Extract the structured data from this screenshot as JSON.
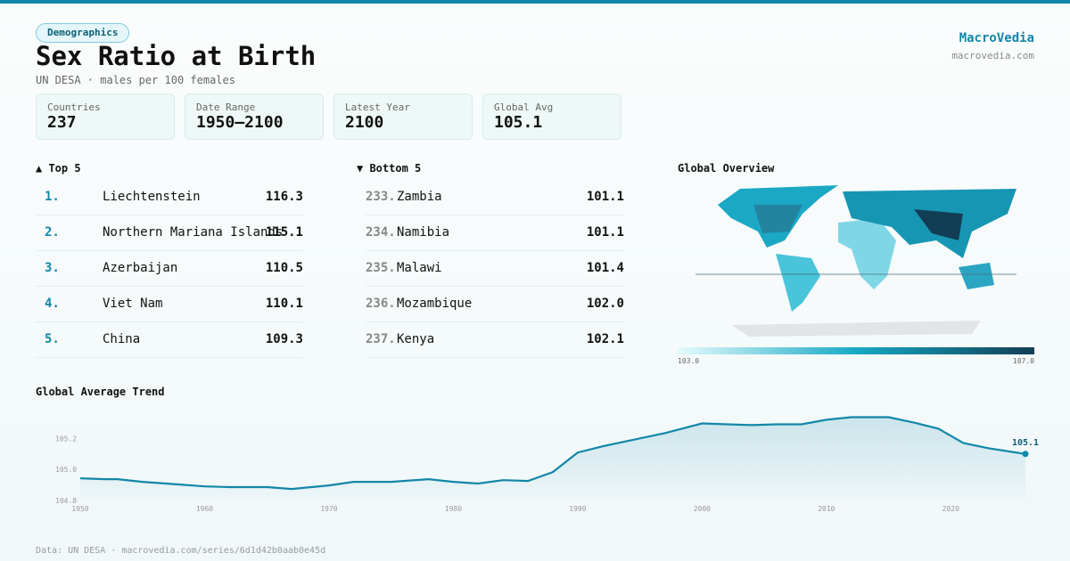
{
  "header": {
    "tag": "Demographics",
    "title": "Sex Ratio at Birth",
    "subtitle": "UN DESA · males per 100 females",
    "brand": "MacroVedia",
    "brand_url": "macrovedia.com"
  },
  "stats": [
    {
      "label": "Countries",
      "value": 237
    },
    {
      "label": "Date Range",
      "value": "1950–2100"
    },
    {
      "label": "Latest Year",
      "value": 2100
    },
    {
      "label": "Global Avg",
      "value": 105.1
    }
  ],
  "top": {
    "title": "▲ Top 5",
    "rows": [
      {
        "rank": "1.",
        "name": "Liechtenstein",
        "value": "116.3"
      },
      {
        "rank": "2.",
        "name": "Northern Mariana Islands",
        "value": "115.1"
      },
      {
        "rank": "3.",
        "name": "Azerbaijan",
        "value": "110.5"
      },
      {
        "rank": "4.",
        "name": "Viet Nam",
        "value": "110.1"
      },
      {
        "rank": "5.",
        "name": "China",
        "value": "109.3"
      }
    ]
  },
  "bottom": {
    "title": "▼ Bottom 5",
    "rows": [
      {
        "rank": "233.",
        "name": "Zambia",
        "value": "101.1"
      },
      {
        "rank": "234.",
        "name": "Namibia",
        "value": "101.1"
      },
      {
        "rank": "235.",
        "name": "Malawi",
        "value": "101.4"
      },
      {
        "rank": "236.",
        "name": "Mozambique",
        "value": "102.0"
      },
      {
        "rank": "237.",
        "name": "Kenya",
        "value": "102.1"
      }
    ]
  },
  "map": {
    "title": "Global Overview",
    "scale_min": {
      "value": 103,
      "label": "103.0"
    },
    "scale_max": {
      "value": 107,
      "label": "107.0"
    }
  },
  "chart_data": {
    "type": "line",
    "title": "Global Average Trend",
    "color": "#1287a8",
    "x": [
      1950,
      1952,
      1953,
      1955,
      1958,
      1960,
      1962,
      1965,
      1967,
      1970,
      1972,
      1975,
      1978,
      1980,
      1982,
      1984,
      1986,
      1988,
      1990,
      1992,
      1995,
      1997,
      2000,
      2002,
      2004,
      2006,
      2008,
      2010,
      2012,
      2015,
      2017,
      2019,
      2021,
      2023,
      2026
    ],
    "values": [
      104.943,
      104.937,
      104.937,
      104.92,
      104.903,
      104.891,
      104.886,
      104.886,
      104.874,
      104.897,
      104.92,
      104.92,
      104.937,
      104.92,
      104.909,
      104.931,
      104.926,
      104.983,
      105.109,
      105.149,
      105.2,
      105.234,
      105.297,
      105.291,
      105.286,
      105.291,
      105.291,
      105.32,
      105.337,
      105.337,
      105.303,
      105.263,
      105.171,
      105.137,
      105.1
    ],
    "xlim": [
      1950,
      2026
    ],
    "xticks": [
      1950,
      1960,
      1970,
      1980,
      1990,
      2000,
      2010,
      2020
    ],
    "ylim": [
      104.8,
      105.38
    ],
    "yticks": [
      104.8,
      {
        "value": 105,
        "label": "105.0"
      },
      105.2
    ],
    "grid": false
  },
  "footer": "Data: UN DESA · macrovedia.com/series/6d1d42b0aab0e45d"
}
